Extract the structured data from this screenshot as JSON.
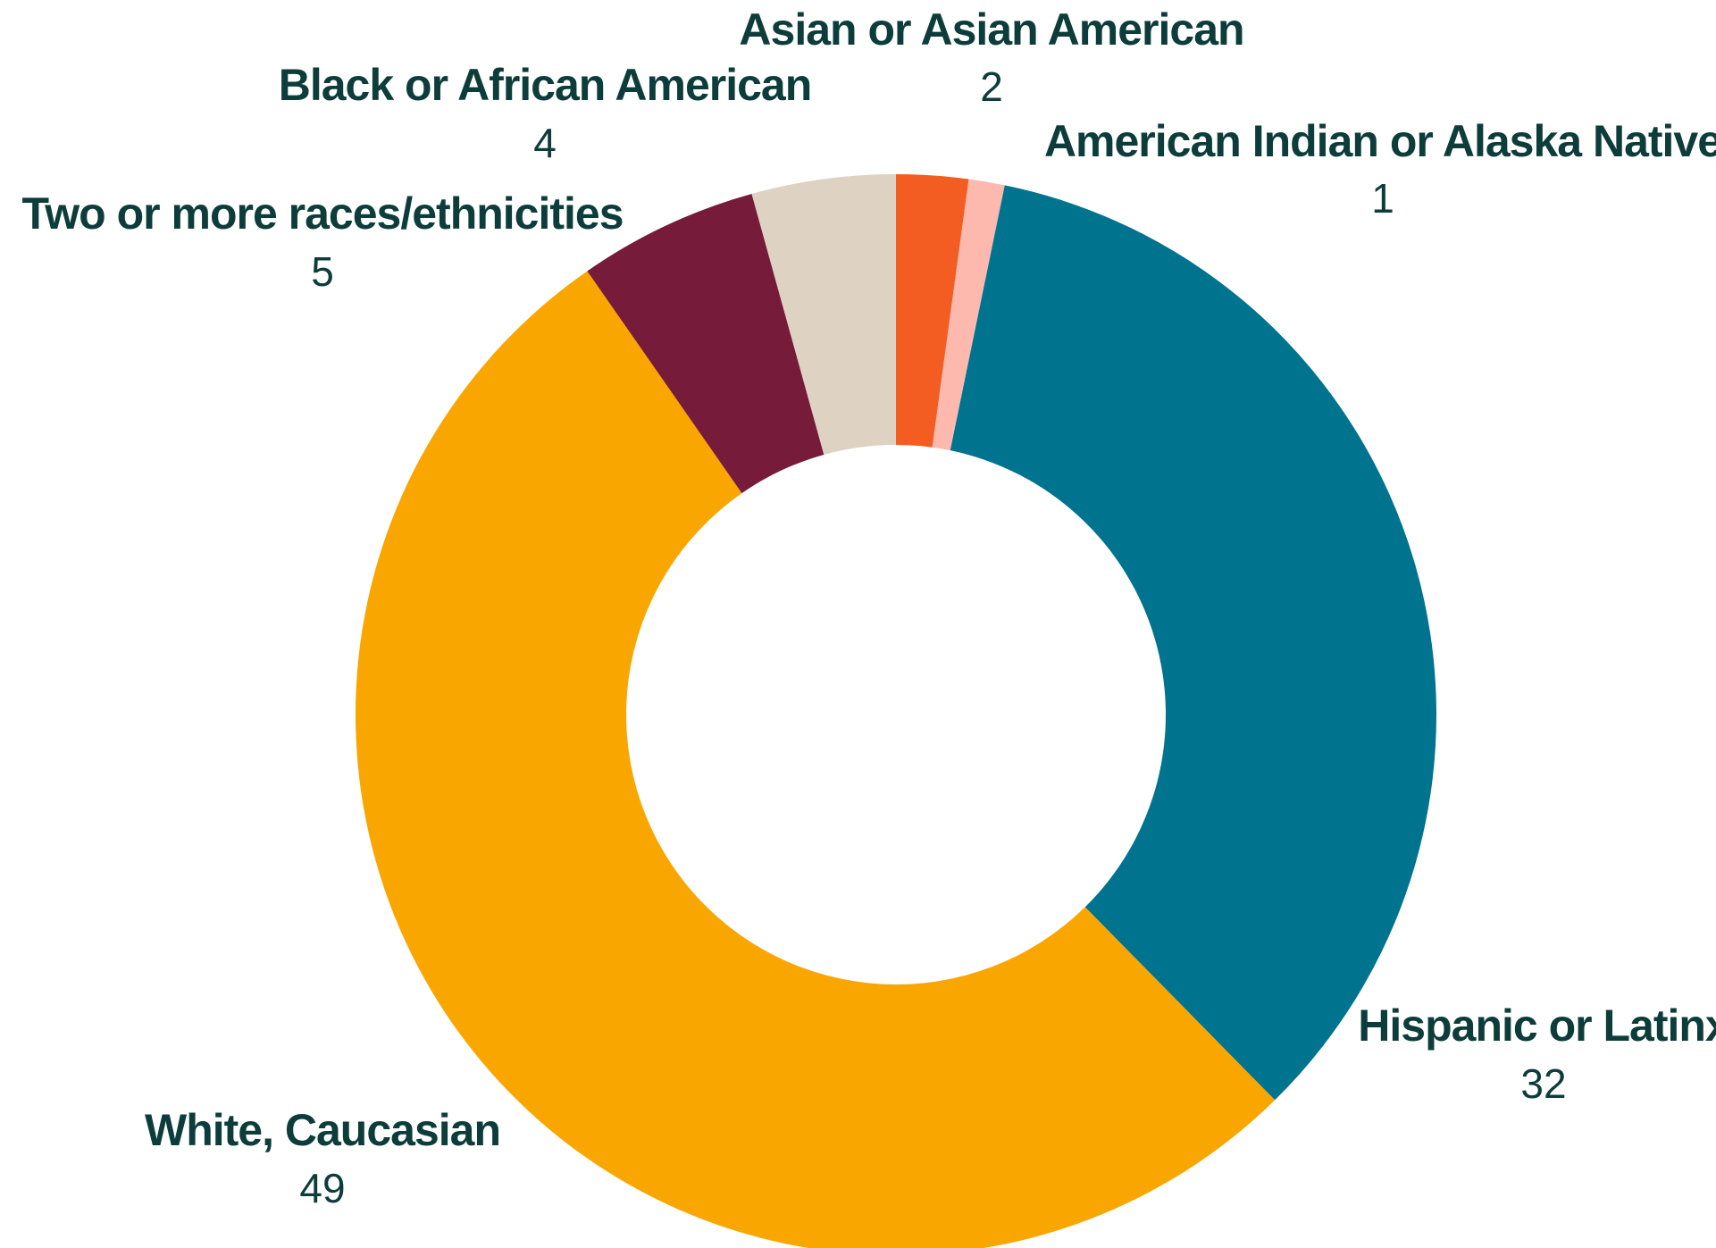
{
  "chart_data": {
    "type": "pie",
    "variant": "donut",
    "title": "",
    "text_color": "#0d3d3a",
    "categories": [
      "Asian or Asian American",
      "American Indian or Alaska Native",
      "Hispanic or Latinx",
      "White, Caucasian",
      "Two or more races/ethnicities",
      "Black or African American"
    ],
    "values": [
      2,
      1,
      32,
      49,
      5,
      4
    ],
    "value_labels": [
      "2",
      "1",
      "32",
      "49",
      "5",
      "4"
    ],
    "colors": [
      "#f45d22",
      "#fdb9ae",
      "#00738f",
      "#f9a601",
      "#761b3a",
      "#ded2c2"
    ],
    "start_angle_deg": 0,
    "direction": "clockwise"
  }
}
